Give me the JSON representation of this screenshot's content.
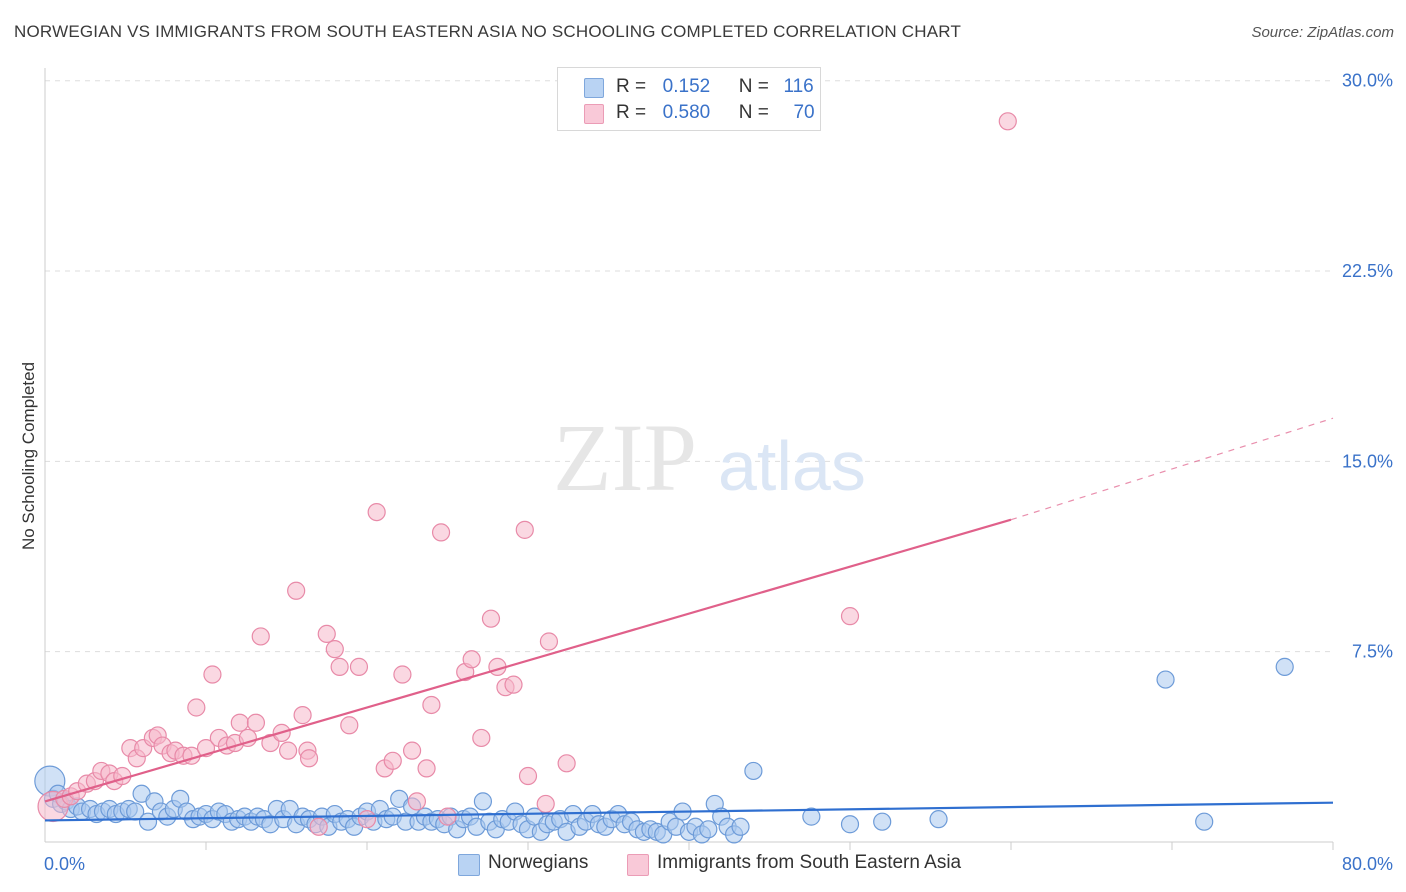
{
  "title": "NORWEGIAN VS IMMIGRANTS FROM SOUTH EASTERN ASIA NO SCHOOLING COMPLETED CORRELATION CHART",
  "source": "Source: ZipAtlas.com",
  "watermark": {
    "zip": "ZIP",
    "atlas": "atlas"
  },
  "legend": {
    "r_label": "R =",
    "n_label": "N =",
    "series": [
      {
        "r": "0.152",
        "n": "116"
      },
      {
        "r": "0.580",
        "n": "70"
      }
    ]
  },
  "colors": {
    "blue_fill": "#a9c8ef",
    "blue_stroke": "#6d9bd8",
    "blue_line": "#2f6fd0",
    "pink_fill": "#f5b8cb",
    "pink_stroke": "#e88aa8",
    "pink_line": "#e0608a",
    "axis_text": "#3a72c9",
    "grid": "#dddddd"
  },
  "chart_data": {
    "type": "scatter",
    "title": "NORWEGIAN VS IMMIGRANTS FROM SOUTH EASTERN ASIA NO SCHOOLING COMPLETED CORRELATION CHART",
    "xlabel": "",
    "ylabel": "No Schooling Completed",
    "xlim": [
      0,
      80
    ],
    "ylim": [
      0,
      30.5
    ],
    "x_tick_labels": [
      "0.0%",
      "80.0%"
    ],
    "y_ticks": [
      7.5,
      15.0,
      22.5,
      30.0
    ],
    "y_tick_labels": [
      "7.5%",
      "15.0%",
      "22.5%",
      "30.0%"
    ],
    "legend_placement": "top-center",
    "series": [
      {
        "name": "Norwegians",
        "color": "#a9c8ef",
        "trend": {
          "x0": 0,
          "y0": 0.85,
          "x1": 80,
          "y1": 1.55
        },
        "points": [
          [
            0.3,
            2.4,
            "L"
          ],
          [
            0.5,
            1.7
          ],
          [
            0.8,
            1.9
          ],
          [
            1.0,
            1.5
          ],
          [
            1.3,
            1.6
          ],
          [
            1.6,
            1.3
          ],
          [
            2.0,
            1.4
          ],
          [
            2.3,
            1.2
          ],
          [
            2.8,
            1.3
          ],
          [
            3.2,
            1.1
          ],
          [
            3.6,
            1.2
          ],
          [
            4.0,
            1.3
          ],
          [
            4.4,
            1.1
          ],
          [
            4.8,
            1.2
          ],
          [
            5.2,
            1.3
          ],
          [
            5.6,
            1.2
          ],
          [
            6.0,
            1.9
          ],
          [
            6.4,
            0.8
          ],
          [
            6.8,
            1.6
          ],
          [
            7.2,
            1.2
          ],
          [
            7.6,
            1.0
          ],
          [
            8.0,
            1.3
          ],
          [
            8.4,
            1.7
          ],
          [
            8.8,
            1.2
          ],
          [
            9.2,
            0.9
          ],
          [
            9.6,
            1.0
          ],
          [
            10.0,
            1.1
          ],
          [
            10.4,
            0.9
          ],
          [
            10.8,
            1.2
          ],
          [
            11.2,
            1.1
          ],
          [
            11.6,
            0.8
          ],
          [
            12.0,
            0.9
          ],
          [
            12.4,
            1.0
          ],
          [
            12.8,
            0.8
          ],
          [
            13.2,
            1.0
          ],
          [
            13.6,
            0.9
          ],
          [
            14.0,
            0.7
          ],
          [
            14.4,
            1.3
          ],
          [
            14.8,
            0.9
          ],
          [
            15.2,
            1.3
          ],
          [
            15.6,
            0.7
          ],
          [
            16.0,
            1.0
          ],
          [
            16.4,
            0.9
          ],
          [
            16.8,
            0.7
          ],
          [
            17.2,
            1.0
          ],
          [
            17.6,
            0.6
          ],
          [
            18.0,
            1.1
          ],
          [
            18.4,
            0.8
          ],
          [
            18.8,
            0.9
          ],
          [
            19.2,
            0.6
          ],
          [
            19.6,
            1.0
          ],
          [
            20.0,
            1.2
          ],
          [
            20.4,
            0.8
          ],
          [
            20.8,
            1.3
          ],
          [
            21.2,
            0.9
          ],
          [
            21.6,
            1.0
          ],
          [
            22.0,
            1.7
          ],
          [
            22.4,
            0.8
          ],
          [
            22.8,
            1.4
          ],
          [
            23.2,
            0.8
          ],
          [
            23.6,
            1.0
          ],
          [
            24.0,
            0.8
          ],
          [
            24.4,
            0.9
          ],
          [
            24.8,
            0.7
          ],
          [
            25.2,
            1.0
          ],
          [
            25.6,
            0.5
          ],
          [
            26.0,
            0.9
          ],
          [
            26.4,
            1.0
          ],
          [
            26.8,
            0.6
          ],
          [
            27.2,
            1.6
          ],
          [
            27.6,
            0.8
          ],
          [
            28.0,
            0.5
          ],
          [
            28.4,
            0.9
          ],
          [
            28.8,
            0.8
          ],
          [
            29.2,
            1.2
          ],
          [
            29.6,
            0.7
          ],
          [
            30.0,
            0.5
          ],
          [
            30.4,
            1.0
          ],
          [
            30.8,
            0.4
          ],
          [
            31.2,
            0.7
          ],
          [
            31.6,
            0.8
          ],
          [
            32.0,
            0.9
          ],
          [
            32.4,
            0.4
          ],
          [
            32.8,
            1.1
          ],
          [
            33.2,
            0.6
          ],
          [
            33.6,
            0.8
          ],
          [
            34.0,
            1.1
          ],
          [
            34.4,
            0.7
          ],
          [
            34.8,
            0.6
          ],
          [
            35.2,
            0.9
          ],
          [
            35.6,
            1.1
          ],
          [
            36.0,
            0.7
          ],
          [
            36.4,
            0.8
          ],
          [
            36.8,
            0.5
          ],
          [
            37.2,
            0.4
          ],
          [
            37.6,
            0.5
          ],
          [
            38.0,
            0.4
          ],
          [
            38.4,
            0.3
          ],
          [
            38.8,
            0.8
          ],
          [
            39.2,
            0.6
          ],
          [
            39.6,
            1.2
          ],
          [
            40.0,
            0.4
          ],
          [
            40.4,
            0.6
          ],
          [
            40.8,
            0.3
          ],
          [
            41.2,
            0.5
          ],
          [
            41.6,
            1.5
          ],
          [
            42.0,
            1.0
          ],
          [
            42.4,
            0.6
          ],
          [
            42.8,
            0.3
          ],
          [
            43.2,
            0.6
          ],
          [
            44.0,
            2.8
          ],
          [
            47.6,
            1.0
          ],
          [
            50.0,
            0.7
          ],
          [
            52.0,
            0.8
          ],
          [
            55.5,
            0.9
          ],
          [
            72.0,
            0.8
          ],
          [
            69.6,
            6.4
          ],
          [
            77.0,
            6.9
          ]
        ]
      },
      {
        "name": "Immigrants from South Eastern Asia",
        "color": "#f5b8cb",
        "trend": {
          "x0": 0,
          "y0": 1.6,
          "x1": 60,
          "y1": 12.7,
          "dash_to_x": 80,
          "dash_to_y": 16.7
        },
        "points": [
          [
            0.5,
            1.4,
            "L"
          ],
          [
            1.2,
            1.7
          ],
          [
            1.6,
            1.8
          ],
          [
            2.0,
            2.0
          ],
          [
            2.6,
            2.3
          ],
          [
            3.1,
            2.4
          ],
          [
            3.5,
            2.8
          ],
          [
            4.0,
            2.7
          ],
          [
            4.3,
            2.4
          ],
          [
            4.8,
            2.6
          ],
          [
            5.3,
            3.7
          ],
          [
            5.7,
            3.3
          ],
          [
            6.1,
            3.7
          ],
          [
            6.7,
            4.1
          ],
          [
            7.0,
            4.2
          ],
          [
            7.3,
            3.8
          ],
          [
            7.8,
            3.5
          ],
          [
            8.1,
            3.6
          ],
          [
            8.6,
            3.4
          ],
          [
            9.1,
            3.4
          ],
          [
            9.4,
            5.3
          ],
          [
            10.0,
            3.7
          ],
          [
            10.4,
            6.6
          ],
          [
            10.8,
            4.1
          ],
          [
            11.3,
            3.8
          ],
          [
            11.8,
            3.9
          ],
          [
            12.1,
            4.7
          ],
          [
            12.6,
            4.1
          ],
          [
            13.1,
            4.7
          ],
          [
            13.4,
            8.1
          ],
          [
            14.0,
            3.9
          ],
          [
            14.7,
            4.3
          ],
          [
            15.1,
            3.6
          ],
          [
            15.6,
            9.9
          ],
          [
            16.0,
            5.0
          ],
          [
            16.3,
            3.6
          ],
          [
            16.4,
            3.3
          ],
          [
            17.0,
            0.6
          ],
          [
            17.5,
            8.2
          ],
          [
            18.0,
            7.6
          ],
          [
            18.3,
            6.9
          ],
          [
            18.9,
            4.6
          ],
          [
            19.5,
            6.9
          ],
          [
            20.0,
            0.9
          ],
          [
            20.6,
            13.0
          ],
          [
            21.1,
            2.9
          ],
          [
            21.6,
            3.2
          ],
          [
            22.2,
            6.6
          ],
          [
            22.8,
            3.6
          ],
          [
            23.1,
            1.6
          ],
          [
            23.7,
            2.9
          ],
          [
            24.0,
            5.4
          ],
          [
            24.6,
            12.2
          ],
          [
            25.0,
            1.0
          ],
          [
            26.1,
            6.7
          ],
          [
            26.5,
            7.2
          ],
          [
            27.1,
            4.1
          ],
          [
            27.7,
            8.8
          ],
          [
            28.1,
            6.9
          ],
          [
            28.6,
            6.1
          ],
          [
            29.1,
            6.2
          ],
          [
            29.8,
            12.3
          ],
          [
            30.0,
            2.6
          ],
          [
            31.1,
            1.5
          ],
          [
            31.3,
            7.9
          ],
          [
            32.4,
            3.1
          ],
          [
            50.0,
            8.9
          ],
          [
            59.8,
            28.4
          ]
        ]
      }
    ]
  }
}
